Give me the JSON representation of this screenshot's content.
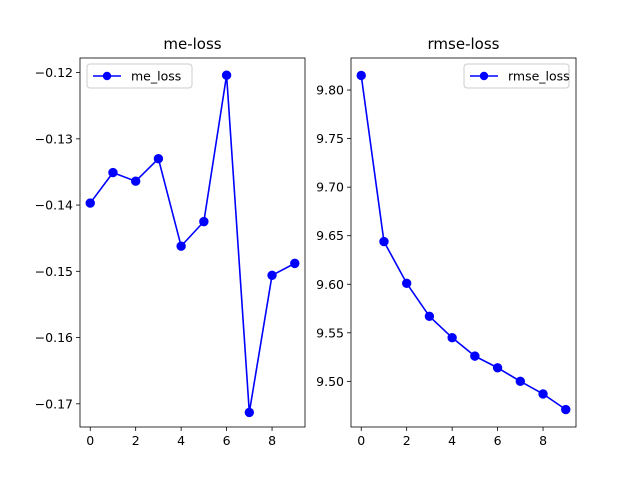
{
  "chart_data": [
    {
      "type": "line",
      "title": "me-loss",
      "xlabel": "",
      "ylabel": "",
      "x": [
        0,
        1,
        2,
        3,
        4,
        5,
        6,
        7,
        8,
        9
      ],
      "xlim": [
        -0.45,
        9.45
      ],
      "ylim": [
        -0.1735,
        -0.1178
      ],
      "xticks": [
        0,
        2,
        4,
        6,
        8
      ],
      "yticks": [
        -0.17,
        -0.16,
        -0.15,
        -0.14,
        -0.13,
        -0.12
      ],
      "xtick_labels": [
        "0",
        "2",
        "4",
        "6",
        "8"
      ],
      "ytick_labels": [
        "−0.17",
        "−0.16",
        "−0.15",
        "−0.14",
        "−0.13",
        "−0.12"
      ],
      "legend_position": "top-left",
      "grid": false,
      "series": [
        {
          "name": "me_loss",
          "color": "#0000ff",
          "marker": "circle",
          "values": [
            -0.1397,
            -0.1351,
            -0.1364,
            -0.133,
            -0.1462,
            -0.1425,
            -0.1204,
            -0.1713,
            -0.1506,
            -0.1488
          ]
        }
      ]
    },
    {
      "type": "line",
      "title": "rmse-loss",
      "xlabel": "",
      "ylabel": "",
      "x": [
        0,
        1,
        2,
        3,
        4,
        5,
        6,
        7,
        8,
        9
      ],
      "xlim": [
        -0.45,
        9.45
      ],
      "ylim": [
        9.453,
        9.833
      ],
      "xticks": [
        0,
        2,
        4,
        6,
        8
      ],
      "yticks": [
        9.5,
        9.55,
        9.6,
        9.65,
        9.7,
        9.75,
        9.8
      ],
      "xtick_labels": [
        "0",
        "2",
        "4",
        "6",
        "8"
      ],
      "ytick_labels": [
        "9.50",
        "9.55",
        "9.60",
        "9.65",
        "9.70",
        "9.75",
        "9.80"
      ],
      "legend_position": "top-right",
      "grid": false,
      "series": [
        {
          "name": "rmse_loss",
          "color": "#0000ff",
          "marker": "circle",
          "values": [
            9.815,
            9.644,
            9.601,
            9.567,
            9.545,
            9.526,
            9.514,
            9.5,
            9.487,
            9.471
          ]
        }
      ]
    }
  ]
}
